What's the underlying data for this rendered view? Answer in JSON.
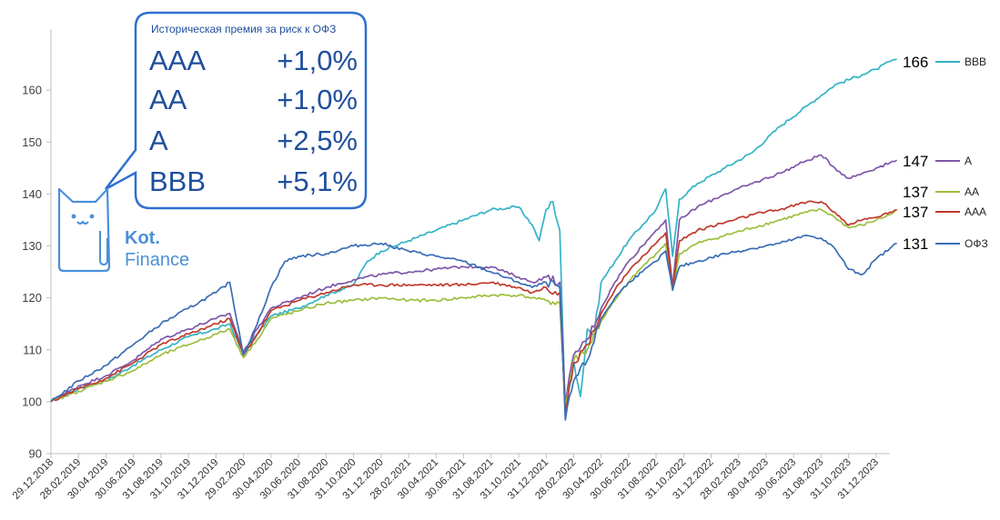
{
  "chart_data": {
    "type": "line",
    "title": "",
    "xlabel": "",
    "ylabel": "",
    "ylim": [
      90,
      170
    ],
    "yticks": [
      90,
      100,
      110,
      120,
      130,
      140,
      150,
      160
    ],
    "x_tick_labels": [
      "29.12.2018",
      "28.02.2019",
      "30.04.2019",
      "30.06.2019",
      "31.08.2019",
      "31.10.2019",
      "31.12.2019",
      "29.02.2020",
      "30.04.2020",
      "30.06.2020",
      "31.08.2020",
      "31.10.2020",
      "31.12.2020",
      "28.02.2021",
      "30.04.2021",
      "30.06.2021",
      "31.08.2021",
      "31.10.2021",
      "31.12.2021",
      "28.02.2022",
      "30.04.2022",
      "30.06.2022",
      "31.08.2022",
      "31.10.2022",
      "31.12.2022",
      "28.02.2023",
      "30.04.2023",
      "30.06.2023",
      "31.08.2023",
      "31.10.2023",
      "31.12.2023"
    ],
    "x_range_months": [
      0,
      61
    ],
    "legend_position": "right",
    "series": [
      {
        "name": "BBB",
        "color": "#33b3c6",
        "end_label": "166",
        "points": [
          [
            0,
            100
          ],
          [
            2,
            102.5
          ],
          [
            4,
            104
          ],
          [
            6,
            107
          ],
          [
            8,
            110
          ],
          [
            10,
            112.5
          ],
          [
            12,
            114
          ],
          [
            13,
            115
          ],
          [
            14,
            109
          ],
          [
            15,
            113
          ],
          [
            16,
            116.5
          ],
          [
            18,
            118
          ],
          [
            20,
            120.5
          ],
          [
            22,
            122.5
          ],
          [
            23,
            127
          ],
          [
            24,
            129
          ],
          [
            26,
            131
          ],
          [
            28,
            133
          ],
          [
            30,
            135
          ],
          [
            32,
            137
          ],
          [
            34,
            137.5
          ],
          [
            35,
            134
          ],
          [
            35.5,
            131
          ],
          [
            36,
            137
          ],
          [
            36.5,
            138.5
          ],
          [
            37,
            133
          ],
          [
            37.4,
            97.5
          ],
          [
            38,
            108
          ],
          [
            38.5,
            101
          ],
          [
            39,
            114
          ],
          [
            39.5,
            113
          ],
          [
            40,
            123
          ],
          [
            41,
            127
          ],
          [
            42,
            131
          ],
          [
            43,
            134
          ],
          [
            44,
            137
          ],
          [
            44.7,
            141
          ],
          [
            45.2,
            128
          ],
          [
            45.7,
            139
          ],
          [
            47,
            142
          ],
          [
            49,
            145
          ],
          [
            51,
            148
          ],
          [
            53,
            153
          ],
          [
            55,
            157
          ],
          [
            57,
            161
          ],
          [
            59,
            163
          ],
          [
            60,
            164
          ],
          [
            61,
            165.5
          ],
          [
            61.5,
            166
          ]
        ]
      },
      {
        "name": "A",
        "color": "#7f57a9",
        "end_label": "147",
        "points": [
          [
            0,
            100
          ],
          [
            2,
            103
          ],
          [
            4,
            105
          ],
          [
            6,
            108
          ],
          [
            8,
            112
          ],
          [
            10,
            114
          ],
          [
            12,
            116
          ],
          [
            13,
            117
          ],
          [
            14,
            109.5
          ],
          [
            15,
            114
          ],
          [
            16,
            118
          ],
          [
            18,
            120
          ],
          [
            20,
            122
          ],
          [
            22,
            123.5
          ],
          [
            24,
            124.5
          ],
          [
            26,
            125
          ],
          [
            28,
            125.5
          ],
          [
            30,
            126
          ],
          [
            32,
            126
          ],
          [
            34,
            124
          ],
          [
            35,
            123
          ],
          [
            36,
            124
          ],
          [
            37,
            123
          ],
          [
            37.4,
            99.5
          ],
          [
            38,
            109
          ],
          [
            39,
            112
          ],
          [
            40,
            118
          ],
          [
            41,
            123
          ],
          [
            42,
            127
          ],
          [
            43,
            130
          ],
          [
            44,
            133
          ],
          [
            44.7,
            135
          ],
          [
            45.2,
            122
          ],
          [
            45.7,
            135
          ],
          [
            47,
            137.5
          ],
          [
            49,
            140
          ],
          [
            51,
            142
          ],
          [
            53,
            144
          ],
          [
            55,
            146.5
          ],
          [
            56,
            147.5
          ],
          [
            57,
            145
          ],
          [
            58,
            143
          ],
          [
            59,
            144
          ],
          [
            60,
            145
          ],
          [
            61,
            146
          ],
          [
            61.5,
            146.5
          ]
        ]
      },
      {
        "name": "AA",
        "color": "#9dbe3e",
        "end_label": "137",
        "points": [
          [
            0,
            100
          ],
          [
            2,
            102
          ],
          [
            4,
            104
          ],
          [
            6,
            106
          ],
          [
            8,
            109
          ],
          [
            10,
            111
          ],
          [
            12,
            113
          ],
          [
            13,
            114
          ],
          [
            14,
            108.5
          ],
          [
            15,
            112
          ],
          [
            16,
            116
          ],
          [
            18,
            117.5
          ],
          [
            20,
            119
          ],
          [
            22,
            119.5
          ],
          [
            24,
            120
          ],
          [
            26,
            119.5
          ],
          [
            28,
            119.5
          ],
          [
            30,
            120
          ],
          [
            32,
            120.5
          ],
          [
            34,
            120.5
          ],
          [
            35,
            120
          ],
          [
            36,
            119.5
          ],
          [
            37,
            119
          ],
          [
            37.4,
            99
          ],
          [
            38,
            108
          ],
          [
            39,
            110
          ],
          [
            40,
            115.5
          ],
          [
            41,
            119.5
          ],
          [
            42,
            123
          ],
          [
            43,
            126
          ],
          [
            44,
            128.5
          ],
          [
            44.7,
            130.5
          ],
          [
            45.2,
            121.5
          ],
          [
            45.7,
            128.5
          ],
          [
            47,
            130.5
          ],
          [
            49,
            132
          ],
          [
            51,
            133.5
          ],
          [
            53,
            135
          ],
          [
            55,
            136.5
          ],
          [
            56,
            137
          ],
          [
            57,
            135.5
          ],
          [
            58,
            133.5
          ],
          [
            59,
            134
          ],
          [
            60,
            135
          ],
          [
            61,
            136
          ],
          [
            61.5,
            137
          ]
        ]
      },
      {
        "name": "AAA",
        "color": "#c0392b",
        "end_label": "137",
        "points": [
          [
            0,
            100
          ],
          [
            2,
            102.5
          ],
          [
            4,
            104.5
          ],
          [
            6,
            107.5
          ],
          [
            8,
            111
          ],
          [
            10,
            113
          ],
          [
            12,
            115
          ],
          [
            13,
            116
          ],
          [
            14,
            109
          ],
          [
            15,
            113
          ],
          [
            16,
            117.5
          ],
          [
            18,
            119.5
          ],
          [
            20,
            121
          ],
          [
            22,
            122.5
          ],
          [
            24,
            122.5
          ],
          [
            26,
            122.5
          ],
          [
            28,
            122.5
          ],
          [
            30,
            122.5
          ],
          [
            32,
            123
          ],
          [
            34,
            122
          ],
          [
            35,
            121
          ],
          [
            36,
            122
          ],
          [
            37,
            121
          ],
          [
            37.4,
            98
          ],
          [
            38,
            107.5
          ],
          [
            39,
            111
          ],
          [
            40,
            117
          ],
          [
            41,
            121.5
          ],
          [
            42,
            125
          ],
          [
            43,
            128
          ],
          [
            44,
            130.5
          ],
          [
            44.7,
            132.5
          ],
          [
            45.2,
            122
          ],
          [
            45.7,
            131
          ],
          [
            47,
            133
          ],
          [
            49,
            134.5
          ],
          [
            51,
            136
          ],
          [
            53,
            137
          ],
          [
            55,
            138.5
          ],
          [
            56,
            138.5
          ],
          [
            57,
            136.5
          ],
          [
            58,
            134
          ],
          [
            59,
            135
          ],
          [
            60,
            135.5
          ],
          [
            61,
            136.5
          ],
          [
            61.5,
            137
          ]
        ]
      },
      {
        "name": "ОФЗ",
        "color": "#3a6db5",
        "end_label": "131",
        "points": [
          [
            0,
            100
          ],
          [
            2,
            104
          ],
          [
            4,
            107
          ],
          [
            6,
            111
          ],
          [
            8,
            115
          ],
          [
            10,
            118
          ],
          [
            12,
            121
          ],
          [
            13,
            123
          ],
          [
            14,
            109
          ],
          [
            15,
            115
          ],
          [
            16,
            122
          ],
          [
            17,
            127
          ],
          [
            18,
            128
          ],
          [
            20,
            128.5
          ],
          [
            22,
            130
          ],
          [
            24,
            130.5
          ],
          [
            26,
            129
          ],
          [
            28,
            128
          ],
          [
            30,
            127
          ],
          [
            32,
            125
          ],
          [
            34,
            123
          ],
          [
            35,
            122
          ],
          [
            36,
            123
          ],
          [
            37,
            122
          ],
          [
            37.4,
            96.5
          ],
          [
            38,
            104
          ],
          [
            39,
            108
          ],
          [
            40,
            116
          ],
          [
            41,
            120
          ],
          [
            42,
            123
          ],
          [
            43,
            125
          ],
          [
            44,
            127
          ],
          [
            44.7,
            129
          ],
          [
            45.2,
            121.5
          ],
          [
            45.7,
            126
          ],
          [
            47,
            127
          ],
          [
            49,
            128.5
          ],
          [
            51,
            129.5
          ],
          [
            53,
            130.5
          ],
          [
            55,
            132
          ],
          [
            56,
            131.5
          ],
          [
            57,
            129.5
          ],
          [
            58,
            125.5
          ],
          [
            59,
            124.5
          ],
          [
            60,
            127.5
          ],
          [
            61,
            129.5
          ],
          [
            61.5,
            130.5
          ]
        ]
      }
    ]
  },
  "callout": {
    "title": "Историческая премия за риск к ОФЗ",
    "rows": [
      {
        "rating": "AAA",
        "premium": "+1,0%"
      },
      {
        "rating": "AA",
        "premium": "+1,0%"
      },
      {
        "rating": "A",
        "premium": "+2,5%"
      },
      {
        "rating": "BBB",
        "premium": "+5,1%"
      }
    ]
  },
  "logo": {
    "line1": "Kot.",
    "line2": "Finance"
  }
}
